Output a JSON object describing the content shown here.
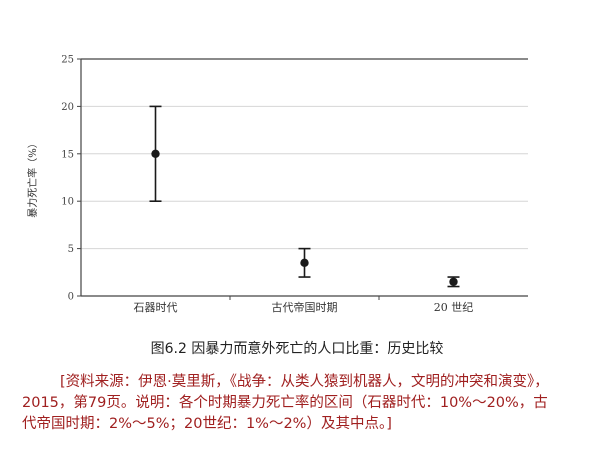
{
  "chart_data": {
    "type": "errorbar",
    "ylabel": "暴力死亡率（%）",
    "ylim": [
      0,
      25
    ],
    "yticks": [
      0,
      5,
      10,
      15,
      20,
      25
    ],
    "categories": [
      "石器时代",
      "古代帝国时期",
      "20 世纪"
    ],
    "points": [
      {
        "category": "石器时代",
        "mid": 15,
        "low": 10,
        "high": 20
      },
      {
        "category": "古代帝国时期",
        "mid": 3.5,
        "low": 2,
        "high": 5
      },
      {
        "category": "20 世纪",
        "mid": 1.5,
        "low": 1,
        "high": 2
      }
    ],
    "grid": true
  },
  "caption": "图6.2 因暴力而意外死亡的人口比重：历史比较",
  "source": "[资料来源：伊恩·莫里斯，《战争：从类人猿到机器人，文明的冲突和演变》，2015，第79页。说明：各个时期暴力死亡率的区间（石器时代：10%～20%，古代帝国时期：2%～5%；20世纪：1%～2%）及其中点。]"
}
